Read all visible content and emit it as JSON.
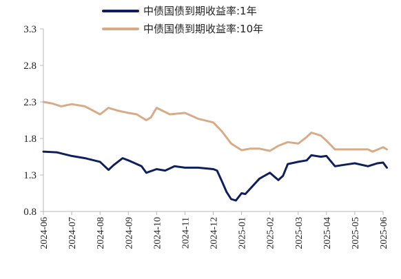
{
  "chart_data": {
    "type": "line",
    "title": "",
    "xlabel": "",
    "ylabel": "",
    "ylim": [
      0.8,
      3.3
    ],
    "yticks": [
      "3.3",
      "2.8",
      "2.3",
      "1.8",
      "1.3",
      "0.8"
    ],
    "xticks": [
      "2024-06",
      "2024-07",
      "2024-08",
      "2024-09",
      "2024-10",
      "2024-11",
      "2024-12",
      "2025-01",
      "2025-02",
      "2025-03",
      "2025-04",
      "2025-05",
      "2025-06"
    ],
    "grid": false,
    "legend_position": "top",
    "series": [
      {
        "name": "中债国债到期收益率:1年",
        "color": "#0d1f5c",
        "x": [
          "2024-06-01",
          "2024-06-15",
          "2024-07-01",
          "2024-07-15",
          "2024-08-01",
          "2024-08-10",
          "2024-08-15",
          "2024-08-25",
          "2024-09-01",
          "2024-09-15",
          "2024-09-20",
          "2024-10-01",
          "2024-10-10",
          "2024-10-20",
          "2024-11-01",
          "2024-11-15",
          "2024-12-01",
          "2024-12-05",
          "2024-12-10",
          "2024-12-15",
          "2024-12-20",
          "2024-12-25",
          "2025-01-01",
          "2025-01-05",
          "2025-01-15",
          "2025-01-20",
          "2025-02-01",
          "2025-02-10",
          "2025-02-15",
          "2025-02-20",
          "2025-03-01",
          "2025-03-10",
          "2025-03-15",
          "2025-03-25",
          "2025-04-01",
          "2025-04-10",
          "2025-04-20",
          "2025-05-01",
          "2025-05-15",
          "2025-05-25",
          "2025-06-01",
          "2025-06-05"
        ],
        "y": [
          1.62,
          1.61,
          1.56,
          1.53,
          1.48,
          1.37,
          1.43,
          1.53,
          1.5,
          1.42,
          1.33,
          1.38,
          1.36,
          1.42,
          1.4,
          1.4,
          1.38,
          1.36,
          1.22,
          1.07,
          0.97,
          0.95,
          1.05,
          1.04,
          1.18,
          1.25,
          1.33,
          1.23,
          1.29,
          1.45,
          1.48,
          1.5,
          1.57,
          1.55,
          1.56,
          1.42,
          1.44,
          1.46,
          1.42,
          1.46,
          1.47,
          1.4
        ]
      },
      {
        "name": "中债国债到期收益率:10年",
        "color": "#d8ab88",
        "x": [
          "2024-06-01",
          "2024-06-10",
          "2024-06-20",
          "2024-07-01",
          "2024-07-15",
          "2024-08-01",
          "2024-08-10",
          "2024-08-20",
          "2024-09-01",
          "2024-09-10",
          "2024-09-20",
          "2024-09-25",
          "2024-10-01",
          "2024-10-15",
          "2024-11-01",
          "2024-11-15",
          "2024-12-01",
          "2024-12-10",
          "2024-12-20",
          "2025-01-01",
          "2025-01-10",
          "2025-01-20",
          "2025-02-01",
          "2025-02-10",
          "2025-02-20",
          "2025-03-01",
          "2025-03-10",
          "2025-03-15",
          "2025-03-25",
          "2025-04-01",
          "2025-04-10",
          "2025-04-20",
          "2025-05-01",
          "2025-05-15",
          "2025-05-20",
          "2025-06-01",
          "2025-06-05"
        ],
        "y": [
          2.3,
          2.28,
          2.24,
          2.27,
          2.24,
          2.13,
          2.22,
          2.18,
          2.15,
          2.13,
          2.05,
          2.09,
          2.22,
          2.13,
          2.15,
          2.07,
          2.02,
          1.9,
          1.73,
          1.64,
          1.66,
          1.66,
          1.63,
          1.7,
          1.75,
          1.73,
          1.82,
          1.88,
          1.84,
          1.77,
          1.65,
          1.65,
          1.65,
          1.65,
          1.62,
          1.68,
          1.65
        ]
      }
    ]
  }
}
